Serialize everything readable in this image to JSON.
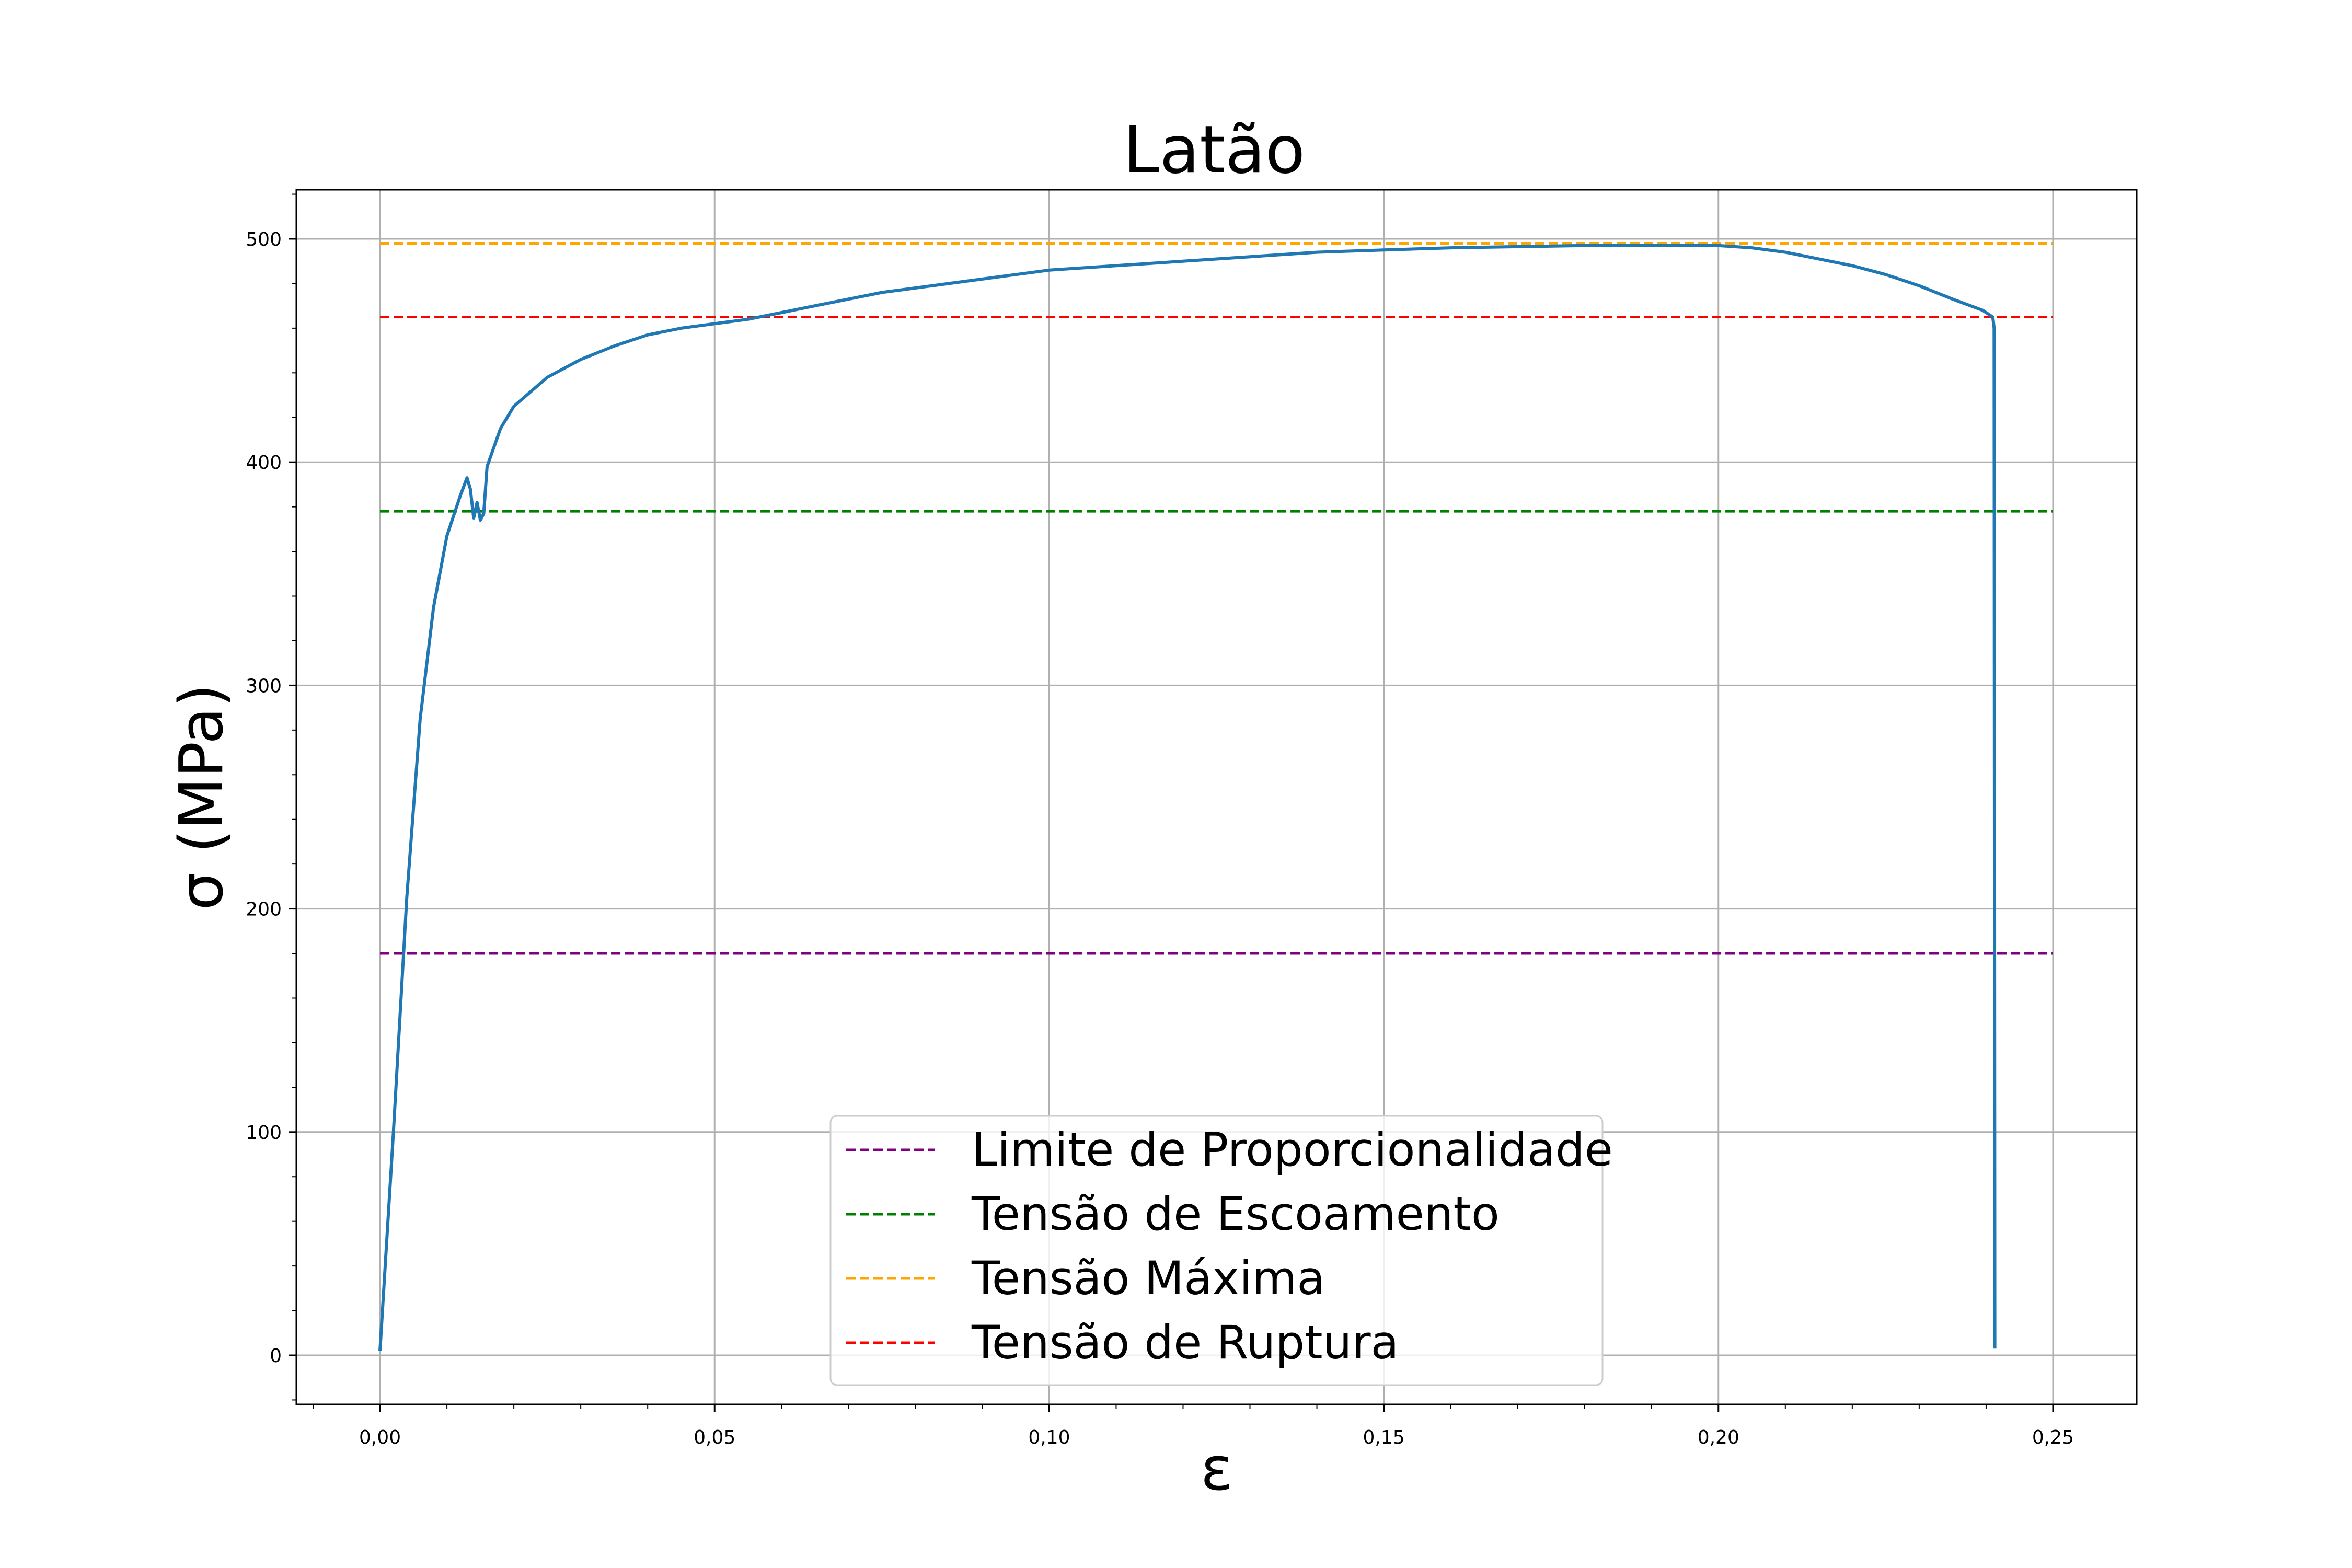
{
  "chart_data": {
    "type": "line",
    "title": "Latão",
    "xlabel": "ε",
    "ylabel": "σ (MPa)",
    "xlim": [
      -0.0125,
      0.2625
    ],
    "ylim": [
      -22,
      522
    ],
    "xticks": [
      0,
      0.05,
      0.1,
      0.15,
      0.2,
      0.25
    ],
    "xtick_labels": [
      "0,00",
      "0,05",
      "0,10",
      "0,15",
      "0,20",
      "0,25"
    ],
    "yticks": [
      0,
      100,
      200,
      300,
      400,
      500
    ],
    "ytick_labels": [
      "0",
      "100",
      "200",
      "300",
      "400",
      "500"
    ],
    "grid": true,
    "legend_position": "lower-center",
    "series": [
      {
        "role": "curve",
        "color": "#1f77b4",
        "x": [
          0.0,
          0.002,
          0.004,
          0.006,
          0.008,
          0.01,
          0.012,
          0.013,
          0.0135,
          0.014,
          0.0145,
          0.015,
          0.0155,
          0.016,
          0.018,
          0.02,
          0.025,
          0.03,
          0.035,
          0.04,
          0.045,
          0.05,
          0.055,
          0.06,
          0.065,
          0.07,
          0.075,
          0.08,
          0.085,
          0.09,
          0.095,
          0.1,
          0.11,
          0.12,
          0.13,
          0.14,
          0.15,
          0.16,
          0.17,
          0.18,
          0.19,
          0.2,
          0.205,
          0.21,
          0.215,
          0.22,
          0.225,
          0.23,
          0.235,
          0.2395,
          0.241,
          0.2412,
          0.2413
        ],
        "y": [
          2,
          100,
          205,
          285,
          335,
          367,
          385,
          393,
          388,
          375,
          382,
          374,
          377,
          398,
          415,
          425,
          438,
          446,
          452,
          457,
          460,
          462,
          464,
          467,
          470,
          473,
          476,
          478,
          480,
          482,
          484,
          486,
          488,
          490,
          492,
          494,
          495,
          496,
          496.5,
          497,
          497,
          497,
          496,
          494,
          491,
          488,
          484,
          479,
          473,
          468,
          465,
          460,
          3
        ]
      },
      {
        "role": "hline",
        "name": "Limite de Proporcionalidade",
        "color": "#800080",
        "y": 180,
        "x_range": [
          0,
          0.25
        ]
      },
      {
        "role": "hline",
        "name": "Tensão de Escoamento",
        "color": "#008000",
        "y": 378,
        "x_range": [
          0,
          0.25
        ]
      },
      {
        "role": "hline",
        "name": "Tensão Máxima",
        "color": "#ffa500",
        "y": 498,
        "x_range": [
          0,
          0.25
        ]
      },
      {
        "role": "hline",
        "name": "Tensão de Ruptura",
        "color": "#ff0000",
        "y": 465,
        "x_range": [
          0,
          0.25
        ]
      }
    ],
    "legend": [
      "Limite de Proporcionalidade",
      "Tensão de Escoamento",
      "Tensão Máxima",
      "Tensão de Ruptura"
    ]
  }
}
